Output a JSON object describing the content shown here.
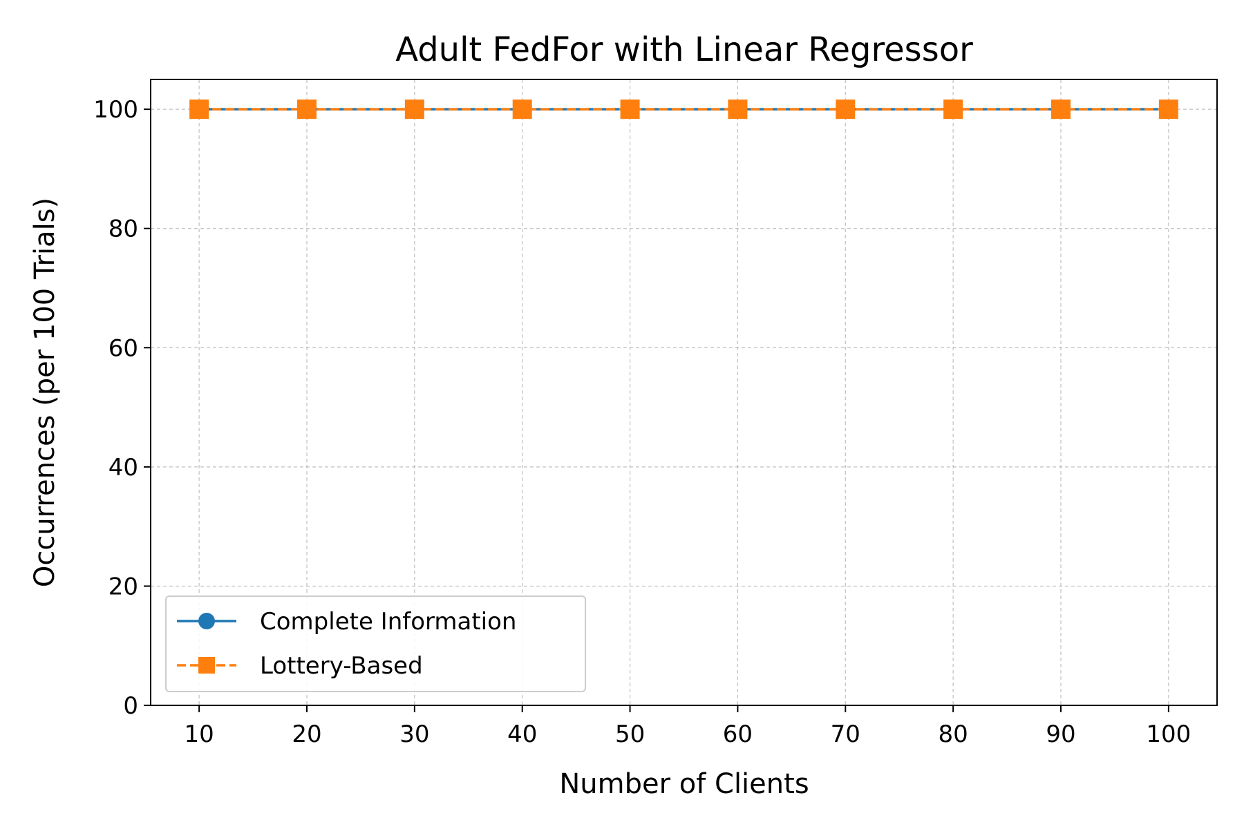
{
  "chart_data": {
    "type": "line",
    "title": "Adult FedFor with Linear Regressor",
    "xlabel": "Number of Clients",
    "ylabel": "Occurrences (per 100 Trials)",
    "x": [
      10,
      20,
      30,
      40,
      50,
      60,
      70,
      80,
      90,
      100
    ],
    "xticks": [
      "10",
      "20",
      "30",
      "40",
      "50",
      "60",
      "70",
      "80",
      "90",
      "100"
    ],
    "yticks": [
      "0",
      "20",
      "40",
      "60",
      "80",
      "100"
    ],
    "xlim": [
      5.5,
      104.5
    ],
    "ylim": [
      0,
      105
    ],
    "grid": true,
    "legend_position": "lower-left",
    "series": [
      {
        "name": "Complete Information",
        "values": [
          100,
          100,
          100,
          100,
          100,
          100,
          100,
          100,
          100,
          100
        ],
        "color": "#1f77b4",
        "marker": "circle",
        "linestyle": "solid"
      },
      {
        "name": "Lottery-Based",
        "values": [
          100,
          100,
          100,
          100,
          100,
          100,
          100,
          100,
          100,
          100
        ],
        "color": "#ff7f0e",
        "marker": "square",
        "linestyle": "dashed"
      }
    ]
  }
}
